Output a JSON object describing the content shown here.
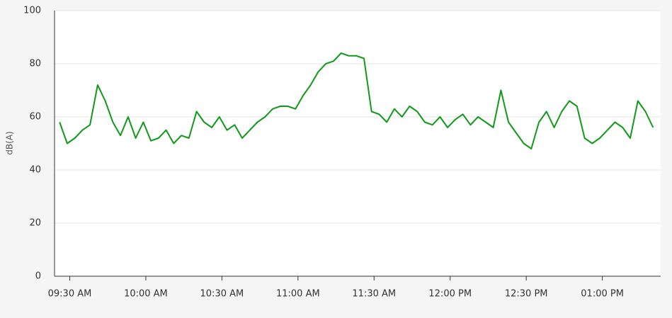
{
  "chart_data": {
    "type": "line",
    "y_label": "dB(A)",
    "x": [
      "09:26 AM",
      "09:29 AM",
      "09:32 AM",
      "09:35 AM",
      "09:38 AM",
      "09:41 AM",
      "09:44 AM",
      "09:47 AM",
      "09:50 AM",
      "09:53 AM",
      "09:56 AM",
      "09:59 AM",
      "10:02 AM",
      "10:05 AM",
      "10:08 AM",
      "10:11 AM",
      "10:14 AM",
      "10:17 AM",
      "10:20 AM",
      "10:23 AM",
      "10:26 AM",
      "10:29 AM",
      "10:32 AM",
      "10:35 AM",
      "10:38 AM",
      "10:41 AM",
      "10:44 AM",
      "10:47 AM",
      "10:50 AM",
      "10:53 AM",
      "10:56 AM",
      "10:59 AM",
      "11:02 AM",
      "11:05 AM",
      "11:08 AM",
      "11:11 AM",
      "11:14 AM",
      "11:17 AM",
      "11:20 AM",
      "11:23 AM",
      "11:26 AM",
      "11:29 AM",
      "11:32 AM",
      "11:35 AM",
      "11:38 AM",
      "11:41 AM",
      "11:44 AM",
      "11:47 AM",
      "11:50 AM",
      "11:53 AM",
      "11:56 AM",
      "11:59 AM",
      "12:02 PM",
      "12:05 PM",
      "12:08 PM",
      "12:11 PM",
      "12:14 PM",
      "12:17 PM",
      "12:20 PM",
      "12:23 PM",
      "12:26 PM",
      "12:29 PM",
      "12:32 PM",
      "12:35 PM",
      "12:38 PM",
      "12:41 PM",
      "12:44 PM",
      "12:47 PM",
      "12:50 PM",
      "12:53 PM",
      "12:56 PM",
      "12:59 PM",
      "01:02 PM",
      "01:05 PM",
      "01:08 PM",
      "01:11 PM",
      "01:14 PM",
      "01:17 PM",
      "01:20 PM"
    ],
    "series": [
      {
        "name": "dB(A)",
        "color": "#11991a",
        "values": [
          58,
          50,
          52,
          55,
          57,
          72,
          66,
          58,
          53,
          60,
          52,
          58,
          51,
          52,
          55,
          50,
          53,
          52,
          62,
          58,
          56,
          60,
          55,
          57,
          52,
          55,
          58,
          60,
          63,
          64,
          64,
          63,
          68,
          72,
          77,
          80,
          81,
          84,
          83,
          83,
          82,
          62,
          61,
          58,
          63,
          60,
          64,
          62,
          58,
          57,
          60,
          56,
          59,
          61,
          57,
          60,
          58,
          56,
          70,
          58,
          54,
          50,
          48,
          58,
          62,
          56,
          62,
          66,
          64,
          52,
          50,
          52,
          55,
          58,
          56,
          52,
          66,
          62,
          56
        ]
      }
    ],
    "xlim": [
      "09:24 AM",
      "01:23 PM"
    ],
    "xticks": [
      "09:30 AM",
      "10:00 AM",
      "10:30 AM",
      "11:00 AM",
      "11:30 AM",
      "12:00 PM",
      "12:30 PM",
      "01:00 PM"
    ],
    "ylim": [
      0,
      100
    ],
    "yticks": [
      0,
      20,
      40,
      60,
      80,
      100
    ],
    "grid": true
  }
}
